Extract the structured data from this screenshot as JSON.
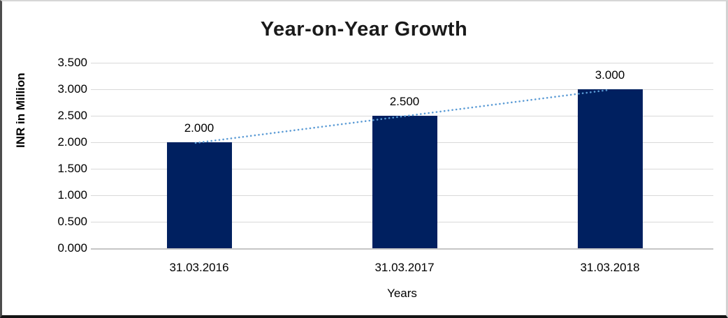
{
  "chart_data": {
    "type": "bar",
    "title": "Year-on-Year Growth",
    "categories": [
      "31.03.2016",
      "31.03.2017",
      "31.03.2018"
    ],
    "values": [
      2.0,
      2.5,
      3.0
    ],
    "value_labels": [
      "2.000",
      "2.500",
      "3.000"
    ],
    "xlabel": "Years",
    "ylabel": "INR in Million",
    "ylim": [
      0,
      3.5
    ],
    "ytick_step": 0.5,
    "ytick_labels": [
      "0.000",
      "0.500",
      "1.000",
      "1.500",
      "2.000",
      "2.500",
      "3.000",
      "3.500"
    ],
    "grid": true,
    "legend": "none",
    "trendline": {
      "type": "linear",
      "style": "dotted",
      "from_category": "31.03.2016",
      "to_category": "31.03.2018",
      "from_value": 2.0,
      "to_value": 3.0
    },
    "colors": {
      "bar": "#002060",
      "trendline": "#5b9bd5",
      "gridline": "#d9d9d9",
      "axis_line": "#c6c6c6",
      "text": "#000000",
      "title_text": "#1a1a1a"
    }
  }
}
